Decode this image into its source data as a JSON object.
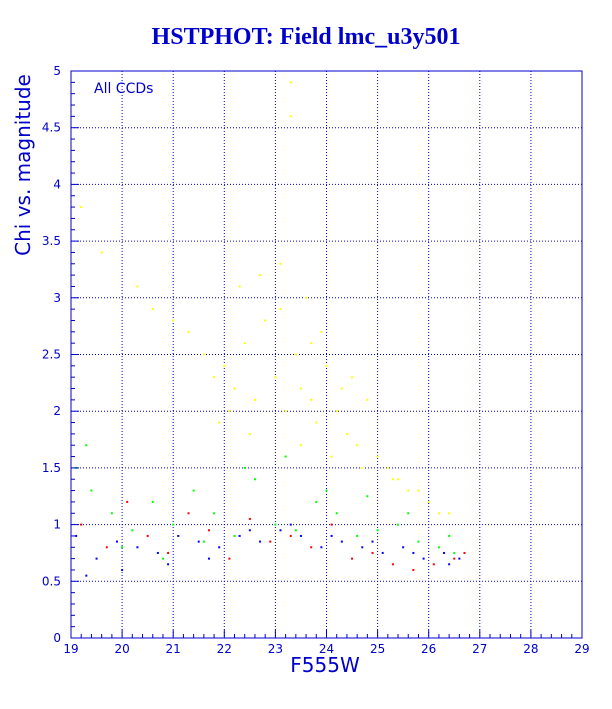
{
  "chart_data": {
    "type": "scatter",
    "title": "HSTPHOT: Field lmc_u3y501",
    "xlabel": "F555W",
    "ylabel": "Chi vs. magnitude",
    "annotation": "All CCDs",
    "xlim": [
      19,
      29
    ],
    "ylim": [
      0,
      5
    ],
    "xticks": [
      "19",
      "20",
      "21",
      "22",
      "23",
      "24",
      "25",
      "26",
      "27",
      "28",
      "29"
    ],
    "yticks": [
      "0",
      "0.5",
      "1",
      "1.5",
      "2",
      "2.5",
      "3",
      "3.5",
      "4",
      "4.5",
      "5"
    ],
    "grid": true,
    "colors": {
      "axes": "#0000cc",
      "grid": "#0000cc",
      "text": "#0000cc"
    },
    "series": [
      {
        "color": "#ffff00",
        "x": [
          19.2,
          19.6,
          20.3,
          20.6,
          21.0,
          21.3,
          21.6,
          21.8,
          22.0,
          22.2,
          22.4,
          22.6,
          22.8,
          23.0,
          23.1,
          23.2,
          23.3,
          23.4,
          23.5,
          23.6,
          23.7,
          23.8,
          24.0,
          24.2,
          24.4,
          24.6,
          24.8,
          25.0,
          25.2,
          25.4,
          25.6,
          25.8,
          26.0,
          26.2,
          26.4,
          22.3,
          22.7,
          23.3,
          23.9,
          24.5,
          21.9,
          22.5,
          23.5,
          24.1,
          24.7,
          25.3,
          22.1,
          23.1,
          23.7,
          24.3
        ],
        "y": [
          3.8,
          3.4,
          3.1,
          2.9,
          2.8,
          2.7,
          2.5,
          2.3,
          2.4,
          2.2,
          2.6,
          2.1,
          2.8,
          2.3,
          3.3,
          2.0,
          4.9,
          2.5,
          2.2,
          3.0,
          2.1,
          1.9,
          2.4,
          2.0,
          1.8,
          1.7,
          2.1,
          1.6,
          1.5,
          1.4,
          1.3,
          1.3,
          1.2,
          1.1,
          1.1,
          3.1,
          3.2,
          4.6,
          2.7,
          2.3,
          1.9,
          1.8,
          1.7,
          1.6,
          1.5,
          1.4,
          2.0,
          2.9,
          2.6,
          2.2
        ]
      },
      {
        "color": "#00ff00",
        "x": [
          19.1,
          19.4,
          19.8,
          20.2,
          20.6,
          21.0,
          21.4,
          21.8,
          22.2,
          22.6,
          23.0,
          23.4,
          23.8,
          24.2,
          24.6,
          25.0,
          25.4,
          25.8,
          26.2,
          26.5,
          19.3,
          20.0,
          20.8,
          21.6,
          22.4,
          23.2,
          24.0,
          24.8,
          25.6,
          26.4
        ],
        "y": [
          1.5,
          1.3,
          1.1,
          0.95,
          1.2,
          1.0,
          1.3,
          1.1,
          0.9,
          1.4,
          1.0,
          0.95,
          1.2,
          1.1,
          0.9,
          0.95,
          1.0,
          0.85,
          0.8,
          0.75,
          1.7,
          0.8,
          0.7,
          0.85,
          1.5,
          1.6,
          1.3,
          1.25,
          1.1,
          0.9
        ]
      },
      {
        "color": "#ff0000",
        "x": [
          19.2,
          19.7,
          20.1,
          20.5,
          20.9,
          21.3,
          21.7,
          22.1,
          22.5,
          22.9,
          23.3,
          23.7,
          24.1,
          24.5,
          24.9,
          25.3,
          25.7,
          26.1,
          26.5,
          26.7
        ],
        "y": [
          1.0,
          0.8,
          1.2,
          0.9,
          0.75,
          1.1,
          0.95,
          0.7,
          1.05,
          0.85,
          0.9,
          0.8,
          1.0,
          0.7,
          0.75,
          0.65,
          0.6,
          0.65,
          0.7,
          0.75
        ]
      },
      {
        "color": "#0000ff",
        "x": [
          19.1,
          19.5,
          19.9,
          20.3,
          20.7,
          21.1,
          21.5,
          21.9,
          22.3,
          22.7,
          23.1,
          23.5,
          23.9,
          24.3,
          24.7,
          25.1,
          25.5,
          25.9,
          26.3,
          26.6,
          19.3,
          20.0,
          20.9,
          21.7,
          22.5,
          23.3,
          24.1,
          24.9,
          25.7,
          26.4
        ],
        "y": [
          0.9,
          0.7,
          0.85,
          0.8,
          0.75,
          0.9,
          0.85,
          0.8,
          0.9,
          0.85,
          0.95,
          0.9,
          0.8,
          0.85,
          0.8,
          0.75,
          0.8,
          0.7,
          0.75,
          0.7,
          0.55,
          0.6,
          0.65,
          0.7,
          0.95,
          1.0,
          0.9,
          0.85,
          0.75,
          0.65
        ]
      }
    ]
  }
}
